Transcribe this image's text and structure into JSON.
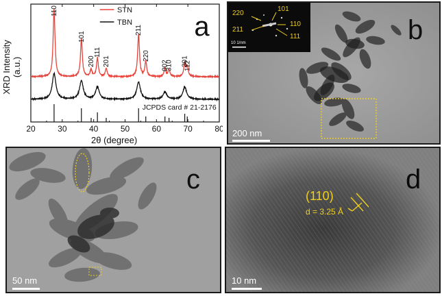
{
  "panel_a": {
    "letter": "a",
    "chart_data": {
      "type": "line",
      "xlabel": "2θ (degree)",
      "ylabel": "XRD Intensity (a.u.)",
      "xlim": [
        20,
        80
      ],
      "xticks": [
        20,
        30,
        40,
        50,
        60,
        70,
        80
      ],
      "series": [
        {
          "name": "STN",
          "color": "#e8423a",
          "peaks": [
            [
              27.4,
              1.0
            ],
            [
              36.1,
              0.55
            ],
            [
              39.2,
              0.1
            ],
            [
              41.2,
              0.27
            ],
            [
              44.0,
              0.12
            ],
            [
              54.3,
              0.62
            ],
            [
              56.6,
              0.22
            ],
            [
              62.7,
              0.12
            ],
            [
              64.0,
              0.1
            ],
            [
              69.0,
              0.2
            ],
            [
              69.8,
              0.14
            ]
          ]
        },
        {
          "name": "TBN",
          "color": "#111111",
          "peaks": [
            [
              27.4,
              0.42
            ],
            [
              36.1,
              0.3
            ],
            [
              41.2,
              0.2
            ],
            [
              54.3,
              0.28
            ],
            [
              62.7,
              0.12
            ],
            [
              69.0,
              0.2
            ]
          ]
        }
      ],
      "reference_lines": [
        27.4,
        36.1,
        39.2,
        41.2,
        44.0,
        54.3,
        56.6,
        62.7,
        64.0,
        69.0,
        69.8
      ],
      "peak_labels": [
        {
          "x": 27.4,
          "text": "110"
        },
        {
          "x": 36.1,
          "text": "101"
        },
        {
          "x": 39.2,
          "text": "200"
        },
        {
          "x": 41.2,
          "text": "111"
        },
        {
          "x": 44.0,
          "text": "201"
        },
        {
          "x": 54.3,
          "text": "211"
        },
        {
          "x": 56.6,
          "text": "220"
        },
        {
          "x": 62.7,
          "text": "002"
        },
        {
          "x": 64.0,
          "text": "310"
        },
        {
          "x": 69.0,
          "text": "301"
        },
        {
          "x": 69.8,
          "text": "112"
        }
      ],
      "reference_label": "JCPDS card # 21-2176"
    }
  },
  "panel_b": {
    "letter": "b",
    "scalebar": "200 nm",
    "saed_labels": [
      "220",
      "101",
      "211",
      "110",
      "111"
    ],
    "saed_scalebar": "10 1/nm"
  },
  "panel_c": {
    "letter": "c",
    "scalebar": "50 nm"
  },
  "panel_d": {
    "letter": "d",
    "scalebar": "10 nm",
    "plane": "(110)",
    "spacing": "d = 3.25 Å"
  },
  "colors": {
    "stn": "#e8423a",
    "tbn": "#111111",
    "annotation": "#f0d020"
  }
}
